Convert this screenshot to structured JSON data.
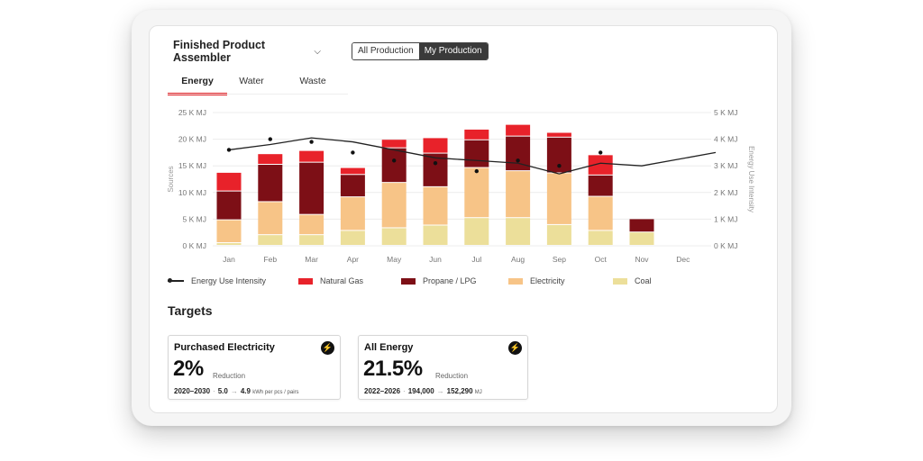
{
  "header": {
    "selector_label": "Finished Product Assembler",
    "chevron_icon": "chevron-down-icon",
    "toggle": {
      "all_label": "All Production",
      "my_label": "My Production",
      "selected": "My Production"
    }
  },
  "tabs": [
    {
      "label": "Energy",
      "active": true
    },
    {
      "label": "Water",
      "active": false
    },
    {
      "label": "Waste",
      "active": false
    }
  ],
  "chart_data": {
    "type": "bar",
    "stacked": true,
    "categories": [
      "Jan",
      "Feb",
      "Mar",
      "Apr",
      "May",
      "Jun",
      "Jul",
      "Aug",
      "Sep",
      "Oct",
      "Nov",
      "Dec"
    ],
    "ylabel": "Sources",
    "y2label": "Energy Use Intensity",
    "ylim": [
      0,
      25000
    ],
    "y2lim": [
      0,
      5000
    ],
    "yticks": [
      "0 K MJ",
      "5 K MJ",
      "10 K MJ",
      "15 K MJ",
      "20 K MJ",
      "25 K MJ"
    ],
    "y2ticks": [
      "0 K MJ",
      "1 K MJ",
      "2 K MJ",
      "3 K MJ",
      "4 K MJ",
      "5 K MJ"
    ],
    "grid": true,
    "legend_position": "bottom",
    "series": [
      {
        "name": "Coal",
        "color": "#ecdf9a",
        "values": [
          500,
          2000,
          2000,
          2800,
          3300,
          3800,
          5200,
          5200,
          3900,
          2800,
          2500,
          null
        ]
      },
      {
        "name": "Electricity",
        "color": "#f7c487",
        "values": [
          4300,
          6200,
          3800,
          6300,
          8500,
          7200,
          9400,
          8800,
          9700,
          6400,
          0,
          null
        ]
      },
      {
        "name": "Propane / LPG",
        "color": "#7d0f16",
        "values": [
          5400,
          7000,
          9800,
          4200,
          6500,
          6300,
          5200,
          6500,
          6700,
          4000,
          2500,
          null
        ]
      },
      {
        "name": "Natural Gas",
        "color": "#e8222a",
        "values": [
          3500,
          2000,
          2200,
          1300,
          1600,
          2900,
          2000,
          2200,
          900,
          3800,
          0,
          null
        ]
      }
    ],
    "line": {
      "name": "Energy Use Intensity",
      "color": "#222222",
      "values": [
        3600,
        3800,
        4050,
        3900,
        3600,
        3300,
        3200,
        3100,
        2700,
        3100,
        3000,
        3500
      ]
    },
    "points": [
      3600,
      4000,
      3900,
      3500,
      3200,
      3100,
      2800,
      3200,
      3000,
      3500,
      null,
      null
    ],
    "legend": [
      {
        "name": "Energy Use Intensity",
        "kind": "line"
      },
      {
        "name": "Natural Gas",
        "color": "#e8222a"
      },
      {
        "name": "Propane / LPG",
        "color": "#7d0f16"
      },
      {
        "name": "Electricity",
        "color": "#f7c487"
      },
      {
        "name": "Coal",
        "color": "#ecdf9a"
      }
    ]
  },
  "targets": {
    "title": "Targets",
    "cards": [
      {
        "title": "Purchased Electricity",
        "icon": "lightning-icon",
        "percent": "2%",
        "reduction_label": "Reduction",
        "years": "2020–2030",
        "from": "5.0",
        "to": "4.9",
        "unit": "kWh per pcs / pairs"
      },
      {
        "title": "All Energy",
        "icon": "lightning-icon",
        "percent": "21.5%",
        "reduction_label": "Reduction",
        "years": "2022–2026",
        "from": "194,000",
        "to": "152,290",
        "unit": "MJ"
      }
    ]
  }
}
